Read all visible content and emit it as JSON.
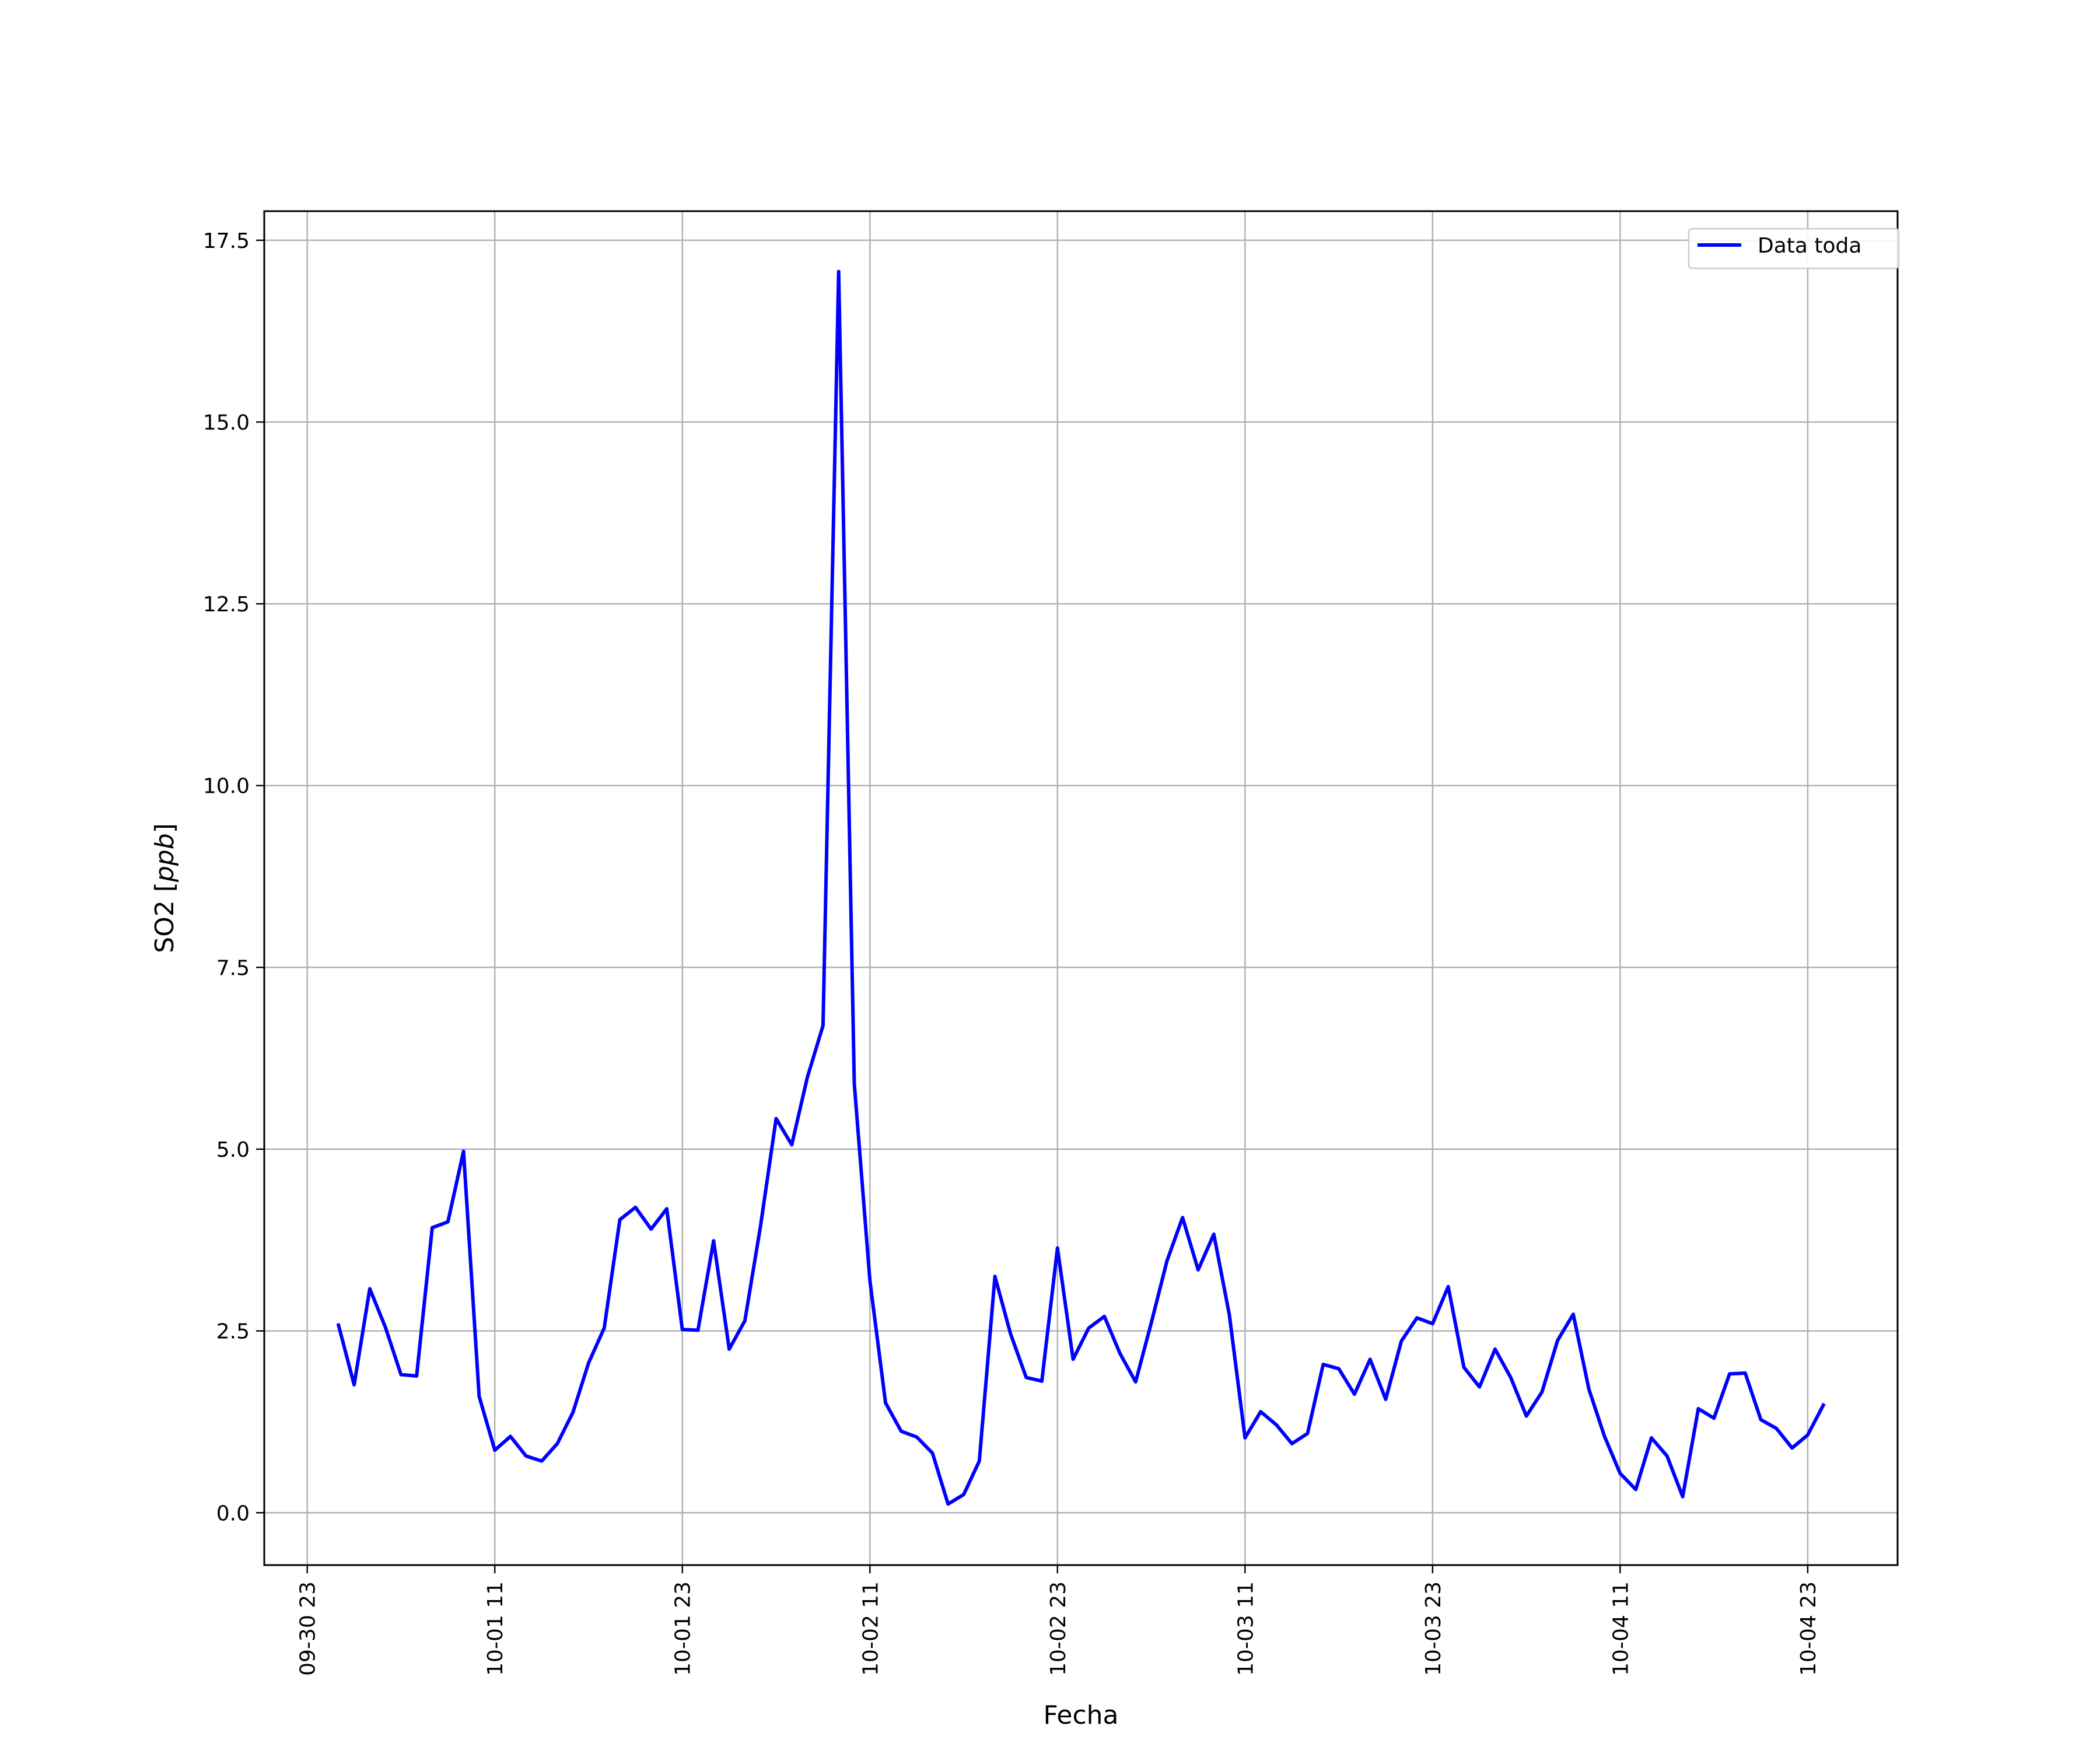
{
  "chart_data": {
    "type": "line",
    "xlabel": "Fecha",
    "ylabel_main": "SO2 [",
    "ylabel_unit": "ppb",
    "ylabel_close": "]",
    "ylim": [
      -0.72,
      17.9
    ],
    "x_tick_labels": [
      "09-30 23",
      "10-01 11",
      "10-01 23",
      "10-02 11",
      "10-02 23",
      "10-03 11",
      "10-03 23",
      "10-04 11",
      "10-04 23"
    ],
    "x_tick_hours": [
      0,
      12,
      24,
      36,
      48,
      60,
      72,
      84,
      96
    ],
    "x_range_hours": [
      -2.75,
      101.75
    ],
    "y_ticks": [
      0.0,
      2.5,
      5.0,
      7.5,
      10.0,
      12.5,
      15.0,
      17.5
    ],
    "y_tick_labels": [
      "0.0",
      "2.5",
      "5.0",
      "7.5",
      "10.0",
      "12.5",
      "15.0",
      "17.5"
    ],
    "grid": true,
    "legend_position": "top-right",
    "series": [
      {
        "name": "Data toda",
        "color": "#0000ff",
        "x_start": "10-01 01",
        "x_step_hours": 1,
        "values": [
          2.58,
          1.76,
          3.08,
          2.55,
          1.9,
          1.88,
          3.92,
          4.0,
          4.97,
          1.6,
          0.86,
          1.05,
          0.78,
          0.71,
          0.95,
          1.38,
          2.06,
          2.54,
          4.03,
          4.2,
          3.9,
          4.18,
          2.52,
          2.51,
          3.74,
          2.25,
          2.64,
          3.94,
          5.42,
          5.06,
          5.99,
          6.7,
          17.07,
          5.9,
          3.19,
          1.51,
          1.12,
          1.04,
          0.82,
          0.12,
          0.25,
          0.71,
          3.25,
          2.46,
          1.86,
          1.81,
          3.64,
          2.11,
          2.54,
          2.7,
          2.19,
          1.8,
          2.61,
          3.46,
          4.06,
          3.34,
          3.83,
          2.72,
          1.03,
          1.39,
          1.21,
          0.95,
          1.09,
          2.04,
          1.98,
          1.63,
          2.11,
          1.56,
          2.36,
          2.68,
          2.6,
          3.11,
          2.0,
          1.73,
          2.25,
          1.86,
          1.33,
          1.66,
          2.37,
          2.73,
          1.7,
          1.05,
          0.54,
          0.32,
          1.03,
          0.78,
          0.22,
          1.43,
          1.3,
          1.91,
          1.92,
          1.28,
          1.16,
          0.89,
          1.07,
          1.48
        ]
      }
    ]
  }
}
